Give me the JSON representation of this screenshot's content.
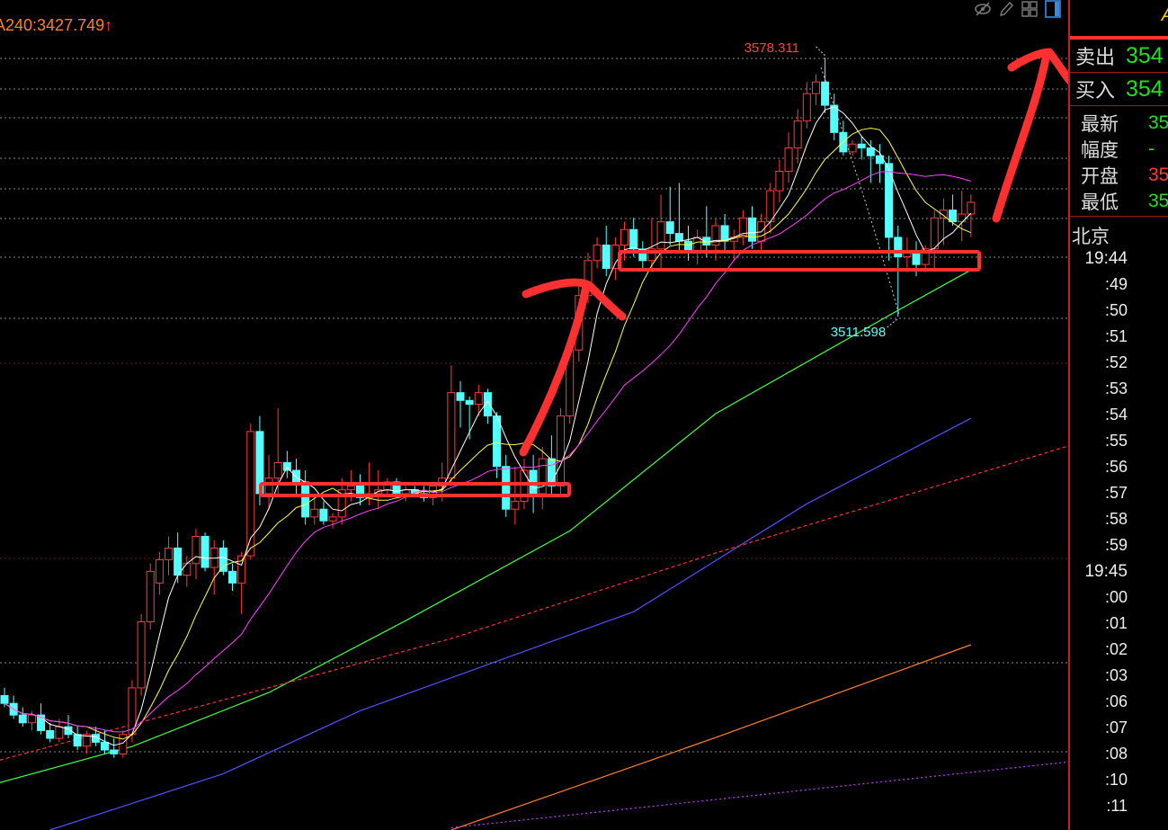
{
  "chart_data": {
    "type": "candlestick",
    "title": "",
    "ma_label": "A240:3427.749",
    "ma_label_arrow": "↑",
    "high_mark": {
      "label": "3578.311",
      "index": 90,
      "value": 3578.311
    },
    "low_mark": {
      "label": "3511.598",
      "index": 98,
      "value": 3511.598
    },
    "ylim": [
      3379.4,
      3593.1
    ],
    "grid": true,
    "colors": {
      "up": "#ff3b3b",
      "down": "#54ffff",
      "ma5": "#ffffff",
      "ma10": "#ffff40",
      "ma20": "#ff40ff",
      "ma60": "#40ff40",
      "ma120": "#5050ff",
      "ma_red": "#ff3030",
      "ma240": "#ff7f2a",
      "ma_purple": "#c040ff",
      "annotation": "#ff3030"
    },
    "candles": [
      [
        3414,
        3416,
        3411,
        3412
      ],
      [
        3412,
        3414,
        3408,
        3409
      ],
      [
        3409,
        3411,
        3406,
        3407
      ],
      [
        3407,
        3410,
        3405,
        3409
      ],
      [
        3409,
        3412,
        3404,
        3405
      ],
      [
        3405,
        3407,
        3402,
        3403
      ],
      [
        3403,
        3408,
        3402,
        3406
      ],
      [
        3406,
        3409,
        3403,
        3404
      ],
      [
        3404,
        3406,
        3400,
        3401
      ],
      [
        3401,
        3405,
        3399,
        3404
      ],
      [
        3404,
        3406,
        3401,
        3402
      ],
      [
        3402,
        3405,
        3399,
        3400
      ],
      [
        3400,
        3403,
        3398,
        3399
      ],
      [
        3399,
        3405,
        3398,
        3404
      ],
      [
        3404,
        3418,
        3402,
        3416
      ],
      [
        3416,
        3435,
        3414,
        3433
      ],
      [
        3433,
        3448,
        3431,
        3446
      ],
      [
        3443,
        3451,
        3440,
        3449
      ],
      [
        3449,
        3455,
        3445,
        3452
      ],
      [
        3452,
        3456,
        3443,
        3445
      ],
      [
        3445,
        3450,
        3442,
        3448
      ],
      [
        3448,
        3457,
        3444,
        3455
      ],
      [
        3455,
        3456,
        3446,
        3447
      ],
      [
        3447,
        3454,
        3440,
        3452
      ],
      [
        3452,
        3454,
        3445,
        3446
      ],
      [
        3446,
        3448,
        3441,
        3443
      ],
      [
        3443,
        3451,
        3435,
        3450
      ],
      [
        3450,
        3484,
        3449,
        3482
      ],
      [
        3482,
        3486,
        3463,
        3466
      ],
      [
        3466,
        3476,
        3462,
        3470
      ],
      [
        3470,
        3488,
        3466,
        3474
      ],
      [
        3474,
        3477,
        3470,
        3472
      ],
      [
        3472,
        3475,
        3466,
        3469
      ],
      [
        3469,
        3472,
        3458,
        3460
      ],
      [
        3460,
        3466,
        3458,
        3462
      ],
      [
        3462,
        3464,
        3458,
        3459
      ],
      [
        3459,
        3461,
        3457,
        3460
      ],
      [
        3460,
        3470,
        3458,
        3467
      ],
      [
        3467,
        3472,
        3464,
        3468
      ],
      [
        3468,
        3471,
        3463,
        3465
      ],
      [
        3465,
        3474,
        3463,
        3466
      ],
      [
        3466,
        3472,
        3462,
        3467
      ],
      [
        3467,
        3470,
        3466,
        3469
      ],
      [
        3469,
        3470,
        3465,
        3466
      ],
      [
        3466,
        3468,
        3464,
        3467
      ],
      [
        3467,
        3468,
        3465,
        3466
      ],
      [
        3466,
        3468,
        3464,
        3465
      ],
      [
        3465,
        3469,
        3463,
        3468
      ],
      [
        3468,
        3474,
        3464,
        3470
      ],
      [
        3470,
        3499,
        3468,
        3492
      ],
      [
        3492,
        3495,
        3483,
        3490
      ],
      [
        3490,
        3491,
        3480,
        3489
      ],
      [
        3489,
        3494,
        3486,
        3492
      ],
      [
        3492,
        3493,
        3484,
        3486
      ],
      [
        3486,
        3487,
        3470,
        3473
      ],
      [
        3473,
        3476,
        3460,
        3462
      ],
      [
        3462,
        3473,
        3458,
        3464
      ],
      [
        3464,
        3475,
        3462,
        3472
      ],
      [
        3472,
        3476,
        3461,
        3466
      ],
      [
        3466,
        3478,
        3462,
        3475
      ],
      [
        3475,
        3481,
        3466,
        3468
      ],
      [
        3468,
        3488,
        3466,
        3486
      ],
      [
        3486,
        3505,
        3484,
        3503
      ],
      [
        3503,
        3520,
        3500,
        3517
      ],
      [
        3517,
        3528,
        3515,
        3526
      ],
      [
        3526,
        3532,
        3524,
        3530
      ],
      [
        3530,
        3535,
        3522,
        3524
      ],
      [
        3524,
        3532,
        3521,
        3530
      ],
      [
        3530,
        3536,
        3526,
        3534
      ],
      [
        3534,
        3537,
        3527,
        3529
      ],
      [
        3529,
        3531,
        3524,
        3526
      ],
      [
        3526,
        3537,
        3523,
        3529
      ],
      [
        3529,
        3543,
        3524,
        3536
      ],
      [
        3536,
        3545,
        3530,
        3533
      ],
      [
        3533,
        3546,
        3528,
        3531
      ],
      [
        3531,
        3535,
        3526,
        3528
      ],
      [
        3528,
        3534,
        3525,
        3532
      ],
      [
        3532,
        3540,
        3527,
        3530
      ],
      [
        3530,
        3537,
        3526,
        3535
      ],
      [
        3535,
        3538,
        3528,
        3531
      ],
      [
        3531,
        3534,
        3526,
        3532
      ],
      [
        3532,
        3539,
        3530,
        3537
      ],
      [
        3537,
        3540,
        3529,
        3531
      ],
      [
        3531,
        3538,
        3528,
        3536
      ],
      [
        3536,
        3546,
        3533,
        3544
      ],
      [
        3544,
        3552,
        3541,
        3549
      ],
      [
        3549,
        3559,
        3546,
        3555
      ],
      [
        3555,
        3565,
        3551,
        3562
      ],
      [
        3562,
        3572,
        3560,
        3569
      ],
      [
        3569,
        3574,
        3566,
        3572
      ],
      [
        3572,
        3578.311,
        3564,
        3566
      ],
      [
        3566,
        3569,
        3557,
        3559
      ],
      [
        3559,
        3562,
        3553,
        3554
      ],
      [
        3554,
        3557,
        3553,
        3556
      ],
      [
        3556,
        3558,
        3552,
        3555
      ],
      [
        3555,
        3557,
        3546,
        3553
      ],
      [
        3553,
        3556,
        3546,
        3551
      ],
      [
        3551,
        3553,
        3526,
        3532
      ],
      [
        3532,
        3535,
        3511.598,
        3527
      ],
      [
        3527,
        3532,
        3523,
        3528
      ],
      [
        3528,
        3531,
        3522,
        3525
      ],
      [
        3525,
        3530,
        3523,
        3529
      ],
      [
        3529,
        3539,
        3524,
        3537
      ],
      [
        3537,
        3542,
        3530,
        3539
      ],
      [
        3539,
        3543,
        3535,
        3536
      ],
      [
        3536,
        3544,
        3531,
        3538
      ],
      [
        3538,
        3543,
        3532,
        3541
      ]
    ],
    "long_ma": [
      {
        "key": "ma60",
        "dash": "",
        "points": [
          [
            -0.5,
            3391.6
          ],
          [
            14,
            3400.9
          ],
          [
            29,
            3414.8
          ],
          [
            44,
            3433.3
          ],
          [
            62,
            3456.4
          ],
          [
            78,
            3486.6
          ],
          [
            98,
            3513.2
          ],
          [
            106,
            3523.6
          ]
        ]
      },
      {
        "key": "ma120",
        "dash": "",
        "points": [
          [
            5,
            3379.4
          ],
          [
            24,
            3393.9
          ],
          [
            39,
            3410.1
          ],
          [
            69,
            3435.6
          ],
          [
            88,
            3463.4
          ],
          [
            106,
            3485.4
          ]
        ]
      },
      {
        "key": "ma_red",
        "dash": "4,3",
        "points": [
          [
            -0.5,
            3397.4
          ],
          [
            49,
            3428.7
          ],
          [
            78,
            3450.7
          ],
          [
            117,
            3478.5
          ]
        ]
      },
      {
        "key": "ma240",
        "dash": "",
        "points": [
          [
            49,
            3379.4
          ],
          [
            78,
            3403.2
          ],
          [
            106,
            3427.1
          ]
        ]
      },
      {
        "key": "ma_purple",
        "dash": "2,3",
        "points": [
          [
            49,
            3380
          ],
          [
            117,
            3397
          ]
        ]
      }
    ]
  },
  "toolbar": {
    "icons": [
      "eye-slash-icon",
      "pencil-icon",
      "grid-icon",
      "panel-icon"
    ]
  },
  "panel": {
    "top_label": "A",
    "sell_label": "卖出",
    "sell_value": "354",
    "buy_label": "买入",
    "buy_value": "354",
    "quote": [
      {
        "label": "最新",
        "value": "35",
        "color": "green"
      },
      {
        "label": "幅度",
        "value": "-",
        "color": "green"
      },
      {
        "label": "开盘",
        "value": "35",
        "color": "red"
      },
      {
        "label": "最低",
        "value": "35",
        "color": "green"
      }
    ],
    "city": "北京",
    "times": [
      "19:44",
      ":49",
      ":50",
      ":51",
      ":52",
      ":53",
      ":54",
      ":55",
      ":56",
      ":57",
      ":58",
      ":59",
      "19:45",
      ":00",
      ":01",
      ":02",
      ":03",
      ":06",
      ":07",
      ":08",
      ":10",
      ":11"
    ]
  }
}
